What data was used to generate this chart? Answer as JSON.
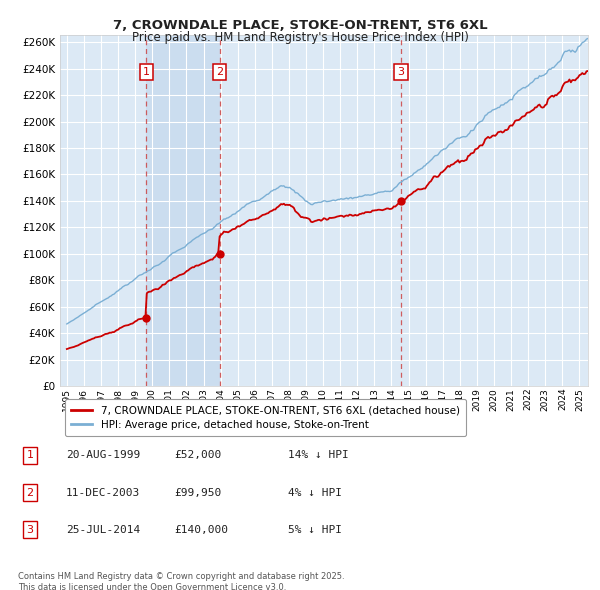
{
  "title": "7, CROWNDALE PLACE, STOKE-ON-TRENT, ST6 6XL",
  "subtitle": "Price paid vs. HM Land Registry's House Price Index (HPI)",
  "xlim_start": 1994.6,
  "xlim_end": 2025.5,
  "ylim": [
    0,
    265000
  ],
  "yticks": [
    0,
    20000,
    40000,
    60000,
    80000,
    100000,
    120000,
    140000,
    160000,
    180000,
    200000,
    220000,
    240000,
    260000
  ],
  "background_color": "#dce9f5",
  "grid_color": "#ffffff",
  "sale1_date": 1999.64,
  "sale1_price": 52000,
  "sale1_label": "1",
  "sale2_date": 2003.94,
  "sale2_price": 99950,
  "sale2_label": "2",
  "sale3_date": 2014.56,
  "sale3_price": 140000,
  "sale3_label": "3",
  "hpi_line_color": "#7bafd4",
  "price_line_color": "#cc0000",
  "sale_marker_color": "#cc0000",
  "vline_color": "#cc0000",
  "legend_line1": "7, CROWNDALE PLACE, STOKE-ON-TRENT, ST6 6XL (detached house)",
  "legend_line2": "HPI: Average price, detached house, Stoke-on-Trent",
  "table_entries": [
    {
      "num": "1",
      "date": "20-AUG-1999",
      "price": "£52,000",
      "hpi": "14% ↓ HPI"
    },
    {
      "num": "2",
      "date": "11-DEC-2003",
      "price": "£99,950",
      "hpi": "4% ↓ HPI"
    },
    {
      "num": "3",
      "date": "25-JUL-2014",
      "price": "£140,000",
      "hpi": "5% ↓ HPI"
    }
  ],
  "footnote": "Contains HM Land Registry data © Crown copyright and database right 2025.\nThis data is licensed under the Open Government Licence v3.0."
}
